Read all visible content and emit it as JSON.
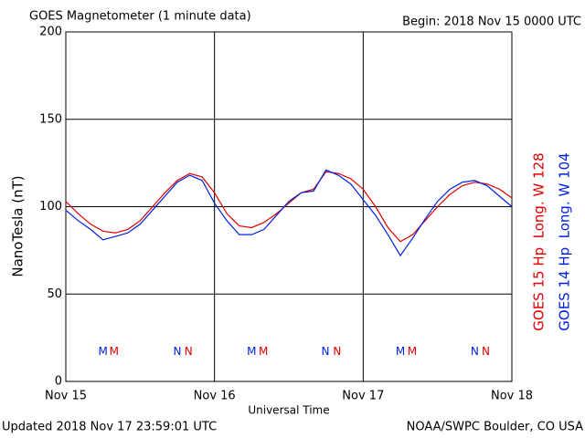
{
  "chart_data": {
    "type": "line",
    "title": "GOES Magnetometer (1 minute data)",
    "subtitle": "Begin:  2018 Nov 15 0000 UTC",
    "xlabel": "Universal Time",
    "ylabel": "NanoTesla (nT)",
    "footer_left": "Updated 2018 Nov 17 23:59:01 UTC",
    "footer_right": "NOAA/SWPC Boulder, CO USA",
    "x": [
      0,
      2,
      4,
      6,
      8,
      10,
      12,
      14,
      16,
      18,
      20,
      22,
      24,
      26,
      28,
      30,
      32,
      34,
      36,
      38,
      40,
      42,
      44,
      46,
      48,
      50,
      52,
      54,
      56,
      58,
      60,
      62,
      64,
      66,
      68,
      70,
      72
    ],
    "series": [
      {
        "name": "GOES 15 Hp  Long. W 128",
        "color": "#e00000",
        "values": [
          103,
          96,
          90,
          86,
          85,
          87,
          92,
          100,
          108,
          115,
          119,
          117,
          108,
          96,
          89,
          88,
          91,
          96,
          102,
          108,
          110,
          120,
          119,
          116,
          110,
          100,
          88,
          80,
          84,
          92,
          100,
          107,
          112,
          114,
          113,
          110,
          105
        ]
      },
      {
        "name": "GOES 14 Hp  Long. W 104",
        "color": "#0020e0",
        "values": [
          98,
          92,
          87,
          81,
          83,
          85,
          90,
          98,
          106,
          114,
          118,
          115,
          102,
          92,
          84,
          84,
          87,
          95,
          103,
          108,
          109,
          121,
          118,
          113,
          104,
          95,
          84,
          72,
          82,
          93,
          103,
          110,
          114,
          115,
          112,
          106,
          100
        ]
      }
    ],
    "markers": [
      {
        "label": "M",
        "series": 1,
        "x": 6
      },
      {
        "label": "M",
        "series": 0,
        "x": 7.8
      },
      {
        "label": "N",
        "series": 1,
        "x": 18
      },
      {
        "label": "N",
        "series": 0,
        "x": 19.8
      },
      {
        "label": "M",
        "series": 1,
        "x": 30
      },
      {
        "label": "M",
        "series": 0,
        "x": 31.9
      },
      {
        "label": "N",
        "series": 1,
        "x": 41.9
      },
      {
        "label": "N",
        "series": 0,
        "x": 43.8
      },
      {
        "label": "M",
        "series": 1,
        "x": 54
      },
      {
        "label": "M",
        "series": 0,
        "x": 55.9
      },
      {
        "label": "N",
        "series": 1,
        "x": 66
      },
      {
        "label": "N",
        "series": 0,
        "x": 67.8
      }
    ],
    "marker_y": 17,
    "xlim": [
      0,
      72
    ],
    "xticks": [
      {
        "value": 0,
        "label": "Nov 15"
      },
      {
        "value": 24,
        "label": "Nov 16"
      },
      {
        "value": 48,
        "label": "Nov 17"
      },
      {
        "value": 72,
        "label": "Nov 18"
      }
    ],
    "ylim": [
      0,
      200
    ],
    "yticks": [
      0,
      50,
      100,
      150,
      200
    ],
    "grid": true
  }
}
